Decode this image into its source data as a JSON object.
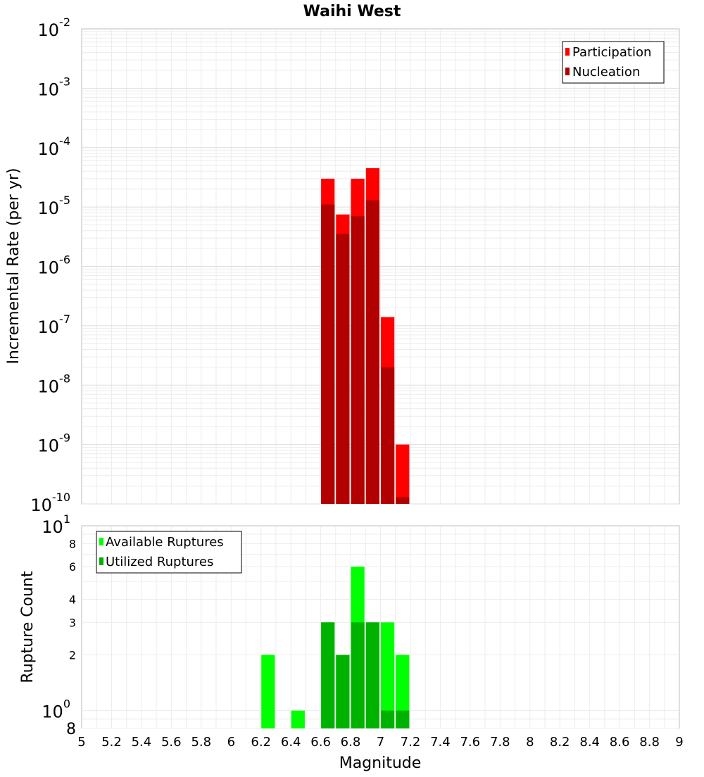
{
  "chart_data": [
    {
      "type": "bar",
      "title": "Waihi West",
      "ylabel": "Incremental Rate (per yr)",
      "xlabel": "",
      "y_scale": "log",
      "ylim": [
        1e-10,
        0.01
      ],
      "y_ticks": [
        {
          "base": "10",
          "exp": "-2"
        },
        {
          "base": "10",
          "exp": "-3"
        },
        {
          "base": "10",
          "exp": "-4"
        },
        {
          "base": "10",
          "exp": "-5"
        },
        {
          "base": "10",
          "exp": "-6"
        },
        {
          "base": "10",
          "exp": "-7"
        },
        {
          "base": "10",
          "exp": "-8"
        },
        {
          "base": "10",
          "exp": "-9"
        },
        {
          "base": "10",
          "exp": "-10"
        }
      ],
      "bar_width": 0.1,
      "grid": true,
      "legend_position": "top-right",
      "series": [
        {
          "name": "Participation",
          "color": "#ff0000",
          "x": [
            6.65,
            6.75,
            6.85,
            6.95,
            7.05,
            7.15
          ],
          "values": [
            3e-05,
            7.5e-06,
            3e-05,
            4.5e-05,
            1.4e-07,
            1e-09
          ]
        },
        {
          "name": "Nucleation",
          "color": "#b20000",
          "x": [
            6.65,
            6.75,
            6.85,
            6.95,
            7.05,
            7.15
          ],
          "values": [
            1.1e-05,
            3.5e-06,
            7e-06,
            1.3e-05,
            2e-08,
            1.3e-10
          ]
        }
      ]
    },
    {
      "type": "bar",
      "title": "",
      "ylabel": "Rupture Count",
      "xlabel": "Magnitude",
      "y_scale": "log",
      "ylim": [
        0.8,
        10
      ],
      "xlim": [
        5,
        9
      ],
      "x_ticks": [
        "5",
        "5.2",
        "5.4",
        "5.6",
        "5.8",
        "6",
        "6.2",
        "6.4",
        "6.6",
        "6.8",
        "7",
        "7.2",
        "7.4",
        "7.6",
        "7.8",
        "8",
        "8.2",
        "8.4",
        "8.6",
        "8.8",
        "9"
      ],
      "y_major_ticks": [
        {
          "base": "10",
          "exp": "1"
        },
        {
          "base": "10",
          "exp": "0"
        }
      ],
      "y_minor_ticks": [
        "8",
        "6",
        "4",
        "3",
        "2",
        "8"
      ],
      "bar_width": 0.1,
      "grid": true,
      "legend_position": "top-left",
      "series": [
        {
          "name": "Available Ruptures",
          "color": "#00ff00",
          "x": [
            6.25,
            6.45,
            6.65,
            6.75,
            6.85,
            6.95,
            7.05,
            7.15
          ],
          "values": [
            2,
            1,
            3,
            2,
            6,
            3,
            3,
            2
          ]
        },
        {
          "name": "Utilized Ruptures",
          "color": "#00b200",
          "x": [
            6.65,
            6.75,
            6.85,
            6.95,
            7.05,
            7.15
          ],
          "values": [
            3,
            2,
            3,
            3,
            1,
            1
          ]
        }
      ]
    }
  ]
}
